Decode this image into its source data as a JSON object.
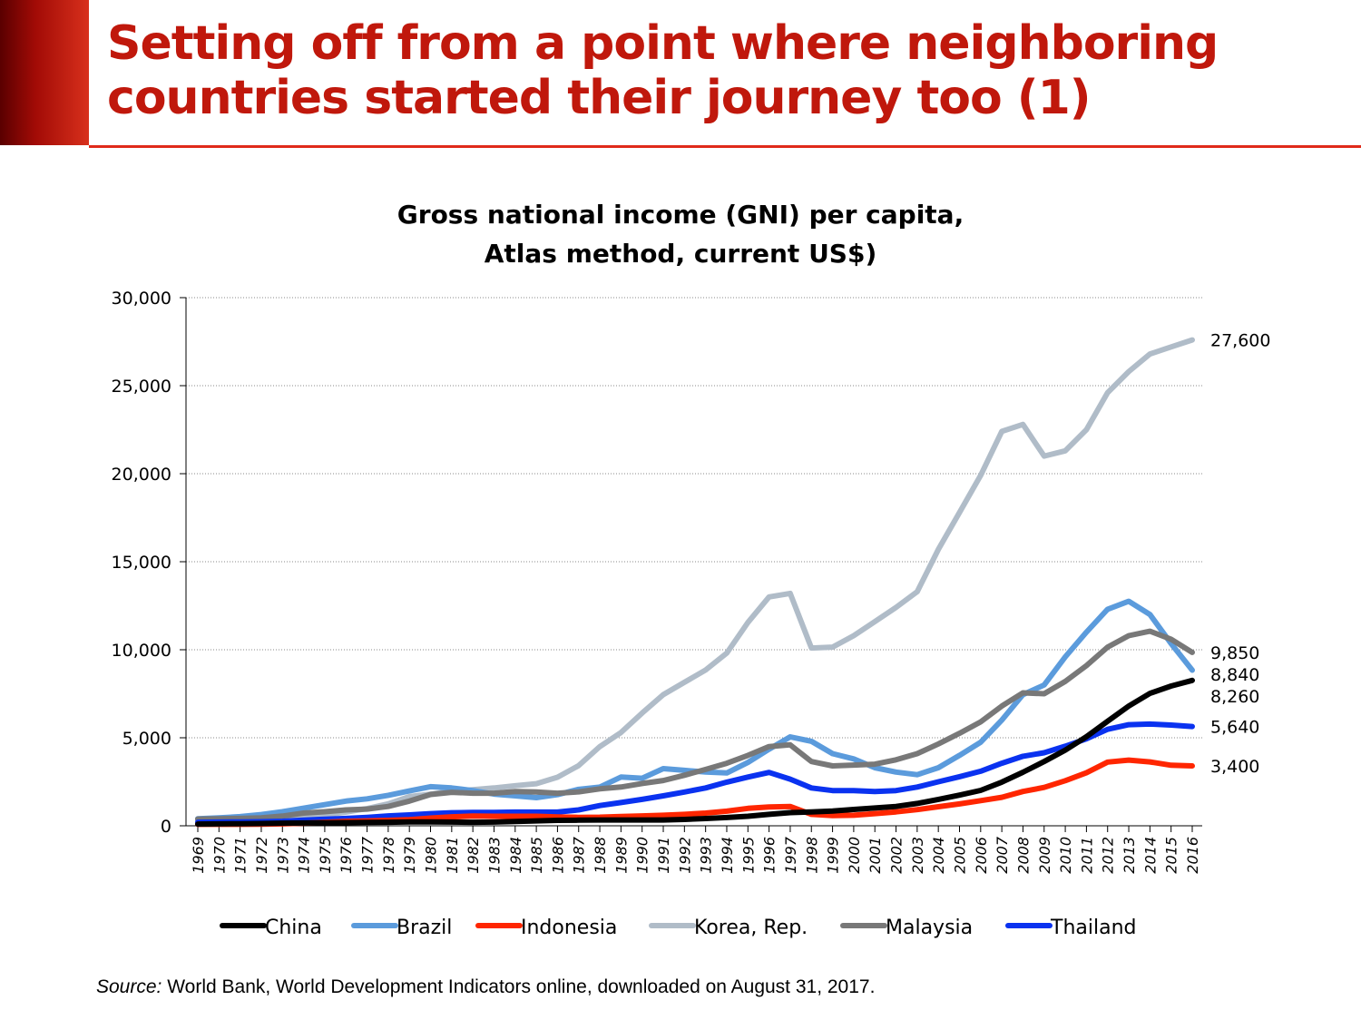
{
  "slide": {
    "title": "Setting off from a point where neighboring countries started their journey too (1)",
    "source_label": "Source:",
    "source_text": "World Bank, World Development Indicators online, downloaded on August 31, 2017."
  },
  "colors": {
    "title": "#c0180c",
    "rule": "#e02a1a"
  },
  "chart_data": {
    "type": "line",
    "title": "Gross national income (GNI) per capita, Atlas method, current US$)",
    "title_lines": [
      "Gross national income (GNI) per capita,",
      "Atlas method, current US$)"
    ],
    "xlabel": "",
    "ylabel": "",
    "ylim": [
      0,
      30000
    ],
    "yticks": [
      0,
      5000,
      10000,
      15000,
      20000,
      25000,
      30000
    ],
    "ytick_labels": [
      "0",
      "5,000",
      "10,000",
      "15,000",
      "20,000",
      "25,000",
      "30,000"
    ],
    "grid": "horizontal dotted",
    "legend": "bottom",
    "categories": [
      "1969",
      "1970",
      "1971",
      "1972",
      "1973",
      "1974",
      "1975",
      "1976",
      "1977",
      "1978",
      "1979",
      "1980",
      "1981",
      "1982",
      "1983",
      "1984",
      "1985",
      "1986",
      "1987",
      "1988",
      "1989",
      "1990",
      "1991",
      "1992",
      "1993",
      "1994",
      "1995",
      "1996",
      "1997",
      "1998",
      "1999",
      "2000",
      "2001",
      "2002",
      "2003",
      "2004",
      "2005",
      "2006",
      "2007",
      "2008",
      "2009",
      "2010",
      "2011",
      "2012",
      "2013",
      "2014",
      "2015",
      "2016"
    ],
    "series": [
      {
        "name": "Korea, Rep.",
        "color": "#b0bcc8",
        "values": [
          270,
          290,
          320,
          370,
          430,
          550,
          620,
          780,
          980,
          1250,
          1660,
          1800,
          1960,
          2050,
          2150,
          2280,
          2390,
          2760,
          3420,
          4500,
          5300,
          6400,
          7450,
          8150,
          8850,
          9810,
          11550,
          13000,
          13200,
          10100,
          10150,
          10800,
          11600,
          12400,
          13300,
          15700,
          17800,
          19900,
          22400,
          22800,
          21000,
          21300,
          22500,
          24600,
          25800,
          26800,
          27200,
          27600
        ],
        "end_label": "27,600"
      },
      {
        "name": "Brazil",
        "color": "#5b9bdc",
        "values": [
          400,
          450,
          520,
          640,
          800,
          1000,
          1200,
          1400,
          1530,
          1730,
          1980,
          2220,
          2150,
          2000,
          1800,
          1700,
          1600,
          1770,
          2070,
          2200,
          2770,
          2700,
          3250,
          3150,
          3050,
          3000,
          3600,
          4350,
          5050,
          4800,
          4100,
          3800,
          3300,
          3050,
          2900,
          3300,
          4000,
          4750,
          6000,
          7450,
          8000,
          9600,
          11000,
          12300,
          12750,
          12000,
          10350,
          8840
        ],
        "end_label": "8,840"
      },
      {
        "name": "Malaysia",
        "color": "#787878",
        "values": [
          380,
          400,
          420,
          450,
          550,
          720,
          800,
          900,
          950,
          1100,
          1400,
          1780,
          1900,
          1850,
          1850,
          1950,
          1920,
          1850,
          1930,
          2100,
          2200,
          2400,
          2570,
          2870,
          3200,
          3550,
          4000,
          4500,
          4600,
          3650,
          3400,
          3450,
          3500,
          3750,
          4100,
          4650,
          5250,
          5900,
          6800,
          7550,
          7500,
          8200,
          9100,
          10150,
          10800,
          11050,
          10600,
          9850
        ],
        "end_label": "9,850"
      },
      {
        "name": "Thailand",
        "color": "#0a32f0",
        "values": [
          200,
          210,
          220,
          230,
          260,
          320,
          370,
          420,
          480,
          560,
          620,
          690,
          740,
          760,
          760,
          780,
          780,
          780,
          900,
          1150,
          1320,
          1500,
          1700,
          1920,
          2150,
          2480,
          2770,
          3030,
          2650,
          2150,
          2000,
          2000,
          1950,
          2000,
          2200,
          2500,
          2790,
          3100,
          3550,
          3950,
          4150,
          4520,
          4940,
          5480,
          5740,
          5780,
          5720,
          5640
        ],
        "end_label": "5,640"
      },
      {
        "name": "Indonesia",
        "color": "#ff2600",
        "values": [
          80,
          80,
          80,
          90,
          110,
          150,
          200,
          250,
          280,
          310,
          350,
          440,
          510,
          550,
          540,
          540,
          540,
          500,
          480,
          490,
          530,
          560,
          600,
          650,
          720,
          830,
          990,
          1070,
          1100,
          650,
          580,
          600,
          690,
          790,
          920,
          1080,
          1240,
          1430,
          1620,
          1950,
          2180,
          2560,
          3010,
          3620,
          3730,
          3630,
          3440,
          3400
        ],
        "end_label": "3,400"
      },
      {
        "name": "China",
        "color": "#000000",
        "values": [
          100,
          110,
          120,
          130,
          150,
          160,
          170,
          180,
          190,
          200,
          220,
          220,
          210,
          200,
          210,
          240,
          280,
          310,
          320,
          330,
          330,
          330,
          330,
          360,
          410,
          470,
          540,
          650,
          750,
          790,
          840,
          930,
          1010,
          1100,
          1270,
          1500,
          1740,
          2010,
          2480,
          3040,
          3650,
          4300,
          5060,
          5940,
          6800,
          7520,
          7940,
          8260
        ],
        "end_label": "8,260"
      }
    ],
    "legend_order": [
      "China",
      "Brazil",
      "Indonesia",
      "Korea, Rep.",
      "Malaysia",
      "Thailand"
    ]
  }
}
